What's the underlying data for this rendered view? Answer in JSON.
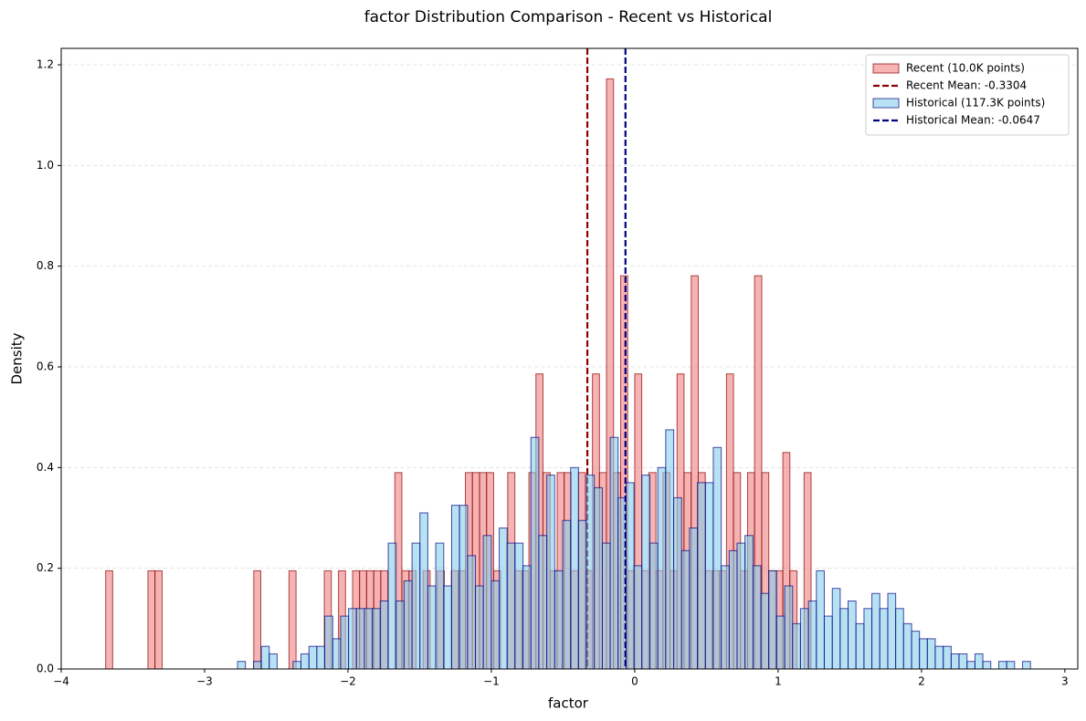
{
  "chart_data": {
    "type": "histogram",
    "title": "factor Distribution Comparison - Recent vs Historical",
    "x_label": "factor",
    "y_label": "Density",
    "xlim": [
      -4.0,
      3.09
    ],
    "ylim": [
      0,
      1.2326
    ],
    "xticks": [
      {
        "value": -4,
        "label": "−4"
      },
      {
        "value": -3,
        "label": "−3"
      },
      {
        "value": -2,
        "label": "−2"
      },
      {
        "value": -1,
        "label": "−1"
      },
      0,
      1,
      2,
      3
    ],
    "yticks": [
      {
        "value": 0,
        "label": "0.0"
      },
      0.2,
      0.4,
      0.6,
      0.8,
      {
        "value": 1,
        "label": "1.0"
      },
      1.2
    ],
    "grid": "y",
    "legend": "upper right",
    "series": [
      {
        "name": "Recent (10.0K points)",
        "color": "#f08080",
        "edgecolor": "#8b0000",
        "bins": [
          -3.69,
          -3.641,
          -3.592,
          -3.542,
          -3.493,
          -3.444,
          -3.395,
          -3.346,
          -3.296,
          -3.247,
          -3.198,
          -3.149,
          -3.1,
          -3.05,
          -3.001,
          -2.952,
          -2.903,
          -2.854,
          -2.804,
          -2.755,
          -2.706,
          -2.657,
          -2.608,
          -2.558,
          -2.509,
          -2.46,
          -2.411,
          -2.362,
          -2.312,
          -2.263,
          -2.214,
          -2.165,
          -2.116,
          -2.066,
          -2.017,
          -1.968,
          -1.919,
          -1.87,
          -1.82,
          -1.771,
          -1.722,
          -1.673,
          -1.624,
          -1.574,
          -1.525,
          -1.476,
          -1.427,
          -1.378,
          -1.328,
          -1.279,
          -1.23,
          -1.181,
          -1.132,
          -1.082,
          -1.033,
          -0.984,
          -0.935,
          -0.886,
          -0.836,
          -0.787,
          -0.738,
          -0.689,
          -0.64,
          -0.59,
          -0.541,
          -0.492,
          -0.443,
          -0.394,
          -0.344,
          -0.295,
          -0.246,
          -0.197,
          -0.148,
          -0.098,
          -0.049,
          0.0,
          0.049,
          0.098,
          0.148,
          0.197,
          0.246,
          0.295,
          0.344,
          0.394,
          0.443,
          0.492,
          0.541,
          0.59,
          0.64,
          0.689,
          0.738,
          0.787,
          0.836,
          0.886,
          0.935,
          0.984,
          1.033,
          1.082,
          1.132,
          1.181,
          1.23
        ],
        "values": [
          0.195,
          0,
          0,
          0,
          0,
          0,
          0.195,
          0.195,
          0,
          0,
          0,
          0,
          0,
          0,
          0,
          0,
          0,
          0,
          0,
          0,
          0,
          0.195,
          0,
          0,
          0,
          0,
          0.195,
          0,
          0,
          0,
          0,
          0.195,
          0,
          0.195,
          0,
          0.195,
          0.195,
          0.195,
          0.195,
          0.195,
          0,
          0.39,
          0.195,
          0.195,
          0,
          0.195,
          0,
          0.195,
          0,
          0.195,
          0.195,
          0.39,
          0.39,
          0.39,
          0.39,
          0.195,
          0,
          0.39,
          0.195,
          0.195,
          0.39,
          0.586,
          0.39,
          0.195,
          0.39,
          0.39,
          0.195,
          0.39,
          0.195,
          0.586,
          0.39,
          1.172,
          0.39,
          0.781,
          0.195,
          0.586,
          0.195,
          0.39,
          0.195,
          0.39,
          0.195,
          0.586,
          0.39,
          0.781,
          0.39,
          0.195,
          0.195,
          0.195,
          0.586,
          0.39,
          0.195,
          0.39,
          0.781,
          0.39,
          0.195,
          0.195,
          0.43,
          0.195,
          0,
          0.39
        ],
        "mean": {
          "label": "Recent Mean: -0.3304",
          "value": -0.3304,
          "color": "#8b0000"
        }
      },
      {
        "name": "Historical (117.3K points)",
        "color": "#87ceeb",
        "edgecolor": "#000080",
        "bins": [
          -2.77,
          -2.715,
          -2.659,
          -2.604,
          -2.549,
          -2.494,
          -2.438,
          -2.383,
          -2.328,
          -2.272,
          -2.217,
          -2.162,
          -2.106,
          -2.051,
          -1.996,
          -1.941,
          -1.885,
          -1.83,
          -1.775,
          -1.719,
          -1.664,
          -1.609,
          -1.553,
          -1.498,
          -1.443,
          -1.388,
          -1.332,
          -1.277,
          -1.222,
          -1.166,
          -1.111,
          -1.056,
          -1.0,
          -0.945,
          -0.89,
          -0.835,
          -0.779,
          -0.724,
          -0.669,
          -0.613,
          -0.558,
          -0.503,
          -0.447,
          -0.392,
          -0.337,
          -0.282,
          -0.226,
          -0.171,
          -0.116,
          -0.06,
          -0.005,
          0.05,
          0.106,
          0.161,
          0.216,
          0.272,
          0.327,
          0.382,
          0.437,
          0.493,
          0.548,
          0.603,
          0.659,
          0.714,
          0.769,
          0.825,
          0.88,
          0.935,
          0.99,
          1.046,
          1.101,
          1.156,
          1.212,
          1.267,
          1.322,
          1.378,
          1.433,
          1.488,
          1.543,
          1.599,
          1.654,
          1.709,
          1.765,
          1.82,
          1.875,
          1.931,
          1.986,
          2.041,
          2.096,
          2.152,
          2.207,
          2.262,
          2.318,
          2.373,
          2.428,
          2.483,
          2.539,
          2.594,
          2.649,
          2.705,
          2.76
        ],
        "values": [
          0.015,
          0,
          0.015,
          0.045,
          0.03,
          0,
          0,
          0.015,
          0.03,
          0.045,
          0.045,
          0.105,
          0.06,
          0.105,
          0.12,
          0.12,
          0.12,
          0.12,
          0.135,
          0.25,
          0.135,
          0.175,
          0.25,
          0.31,
          0.165,
          0.25,
          0.165,
          0.325,
          0.325,
          0.225,
          0.165,
          0.265,
          0.175,
          0.28,
          0.25,
          0.25,
          0.205,
          0.46,
          0.265,
          0.385,
          0.195,
          0.295,
          0.4,
          0.295,
          0.385,
          0.36,
          0.25,
          0.46,
          0.34,
          0.37,
          0.205,
          0.385,
          0.25,
          0.4,
          0.475,
          0.34,
          0.235,
          0.28,
          0.37,
          0.37,
          0.44,
          0.205,
          0.235,
          0.25,
          0.265,
          0.205,
          0.15,
          0.195,
          0.105,
          0.165,
          0.09,
          0.12,
          0.135,
          0.195,
          0.105,
          0.16,
          0.12,
          0.135,
          0.09,
          0.12,
          0.15,
          0.12,
          0.15,
          0.12,
          0.09,
          0.075,
          0.06,
          0.06,
          0.045,
          0.045,
          0.03,
          0.03,
          0.015,
          0.03,
          0.015,
          0,
          0.015,
          0.015,
          0,
          0.015
        ],
        "mean": {
          "label": "Historical Mean: -0.0647",
          "value": -0.0647,
          "color": "#000080"
        }
      }
    ]
  }
}
